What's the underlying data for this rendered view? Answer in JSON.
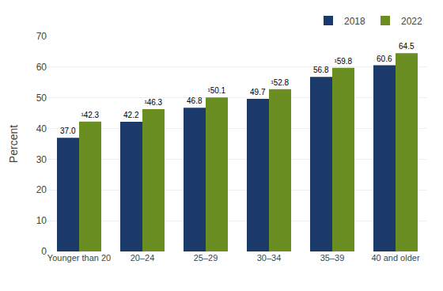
{
  "chart_data": {
    "type": "bar",
    "categories": [
      "Younger than 20",
      "20–24",
      "25–29",
      "30–34",
      "35–39",
      "40 and older"
    ],
    "series": [
      {
        "name": "2018",
        "color": "#1b3a6b",
        "values": [
          37.0,
          42.2,
          46.8,
          49.7,
          56.8,
          60.6
        ],
        "value_labels": [
          "37.0",
          "42.2",
          "46.8",
          "49.7",
          "56.8",
          "60.6"
        ]
      },
      {
        "name": "2022",
        "color": "#6b8e23",
        "values": [
          42.3,
          46.3,
          50.1,
          52.8,
          59.8,
          64.5
        ],
        "value_labels": [
          "¹42.3",
          "¹46.3",
          "¹50.1",
          "¹52.8",
          "¹59.8",
          "64.5"
        ]
      }
    ],
    "ylabel": "Percent",
    "ylim": [
      0,
      70
    ],
    "yticks": [
      0,
      10,
      20,
      30,
      40,
      50,
      60,
      70
    ],
    "grid": true,
    "legend": "upper right",
    "data_labels": true
  }
}
